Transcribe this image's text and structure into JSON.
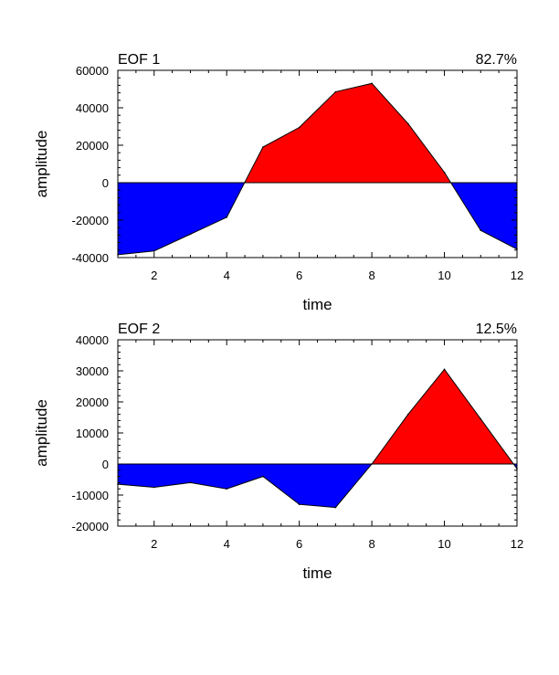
{
  "colors": {
    "positive_fill": "#ff0000",
    "negative_fill": "#0000ff",
    "axis": "#000000"
  },
  "chart_data": [
    {
      "type": "area",
      "title_left": "EOF 1",
      "title_right": "82.7%",
      "xlabel": "time",
      "ylabel": "amplitude",
      "xlim": [
        1,
        12
      ],
      "ylim": [
        -40000,
        60000
      ],
      "xticks": [
        2,
        4,
        6,
        8,
        10,
        12
      ],
      "yticks": [
        -40000,
        -20000,
        0,
        20000,
        40000,
        60000
      ],
      "reference_line": 0,
      "x": [
        1,
        2,
        3,
        4,
        5,
        6,
        7,
        8,
        9,
        10,
        11,
        12
      ],
      "y": [
        -38500,
        -36500,
        -27500,
        -18500,
        19000,
        29500,
        48500,
        53000,
        31500,
        5500,
        -25500,
        -35500
      ]
    },
    {
      "type": "area",
      "title_left": "EOF 2",
      "title_right": "12.5%",
      "xlabel": "time",
      "ylabel": "amplitude",
      "xlim": [
        1,
        12
      ],
      "ylim": [
        -20000,
        40000
      ],
      "xticks": [
        2,
        4,
        6,
        8,
        10,
        12
      ],
      "yticks": [
        -20000,
        -10000,
        0,
        10000,
        20000,
        30000,
        40000
      ],
      "reference_line": 0,
      "x": [
        1,
        2,
        3,
        4,
        5,
        6,
        7,
        8,
        9,
        10,
        11,
        12
      ],
      "y": [
        -6500,
        -7500,
        -6000,
        -8000,
        -4000,
        -13000,
        -14000,
        0,
        16000,
        30500,
        14500,
        -1500
      ]
    }
  ]
}
